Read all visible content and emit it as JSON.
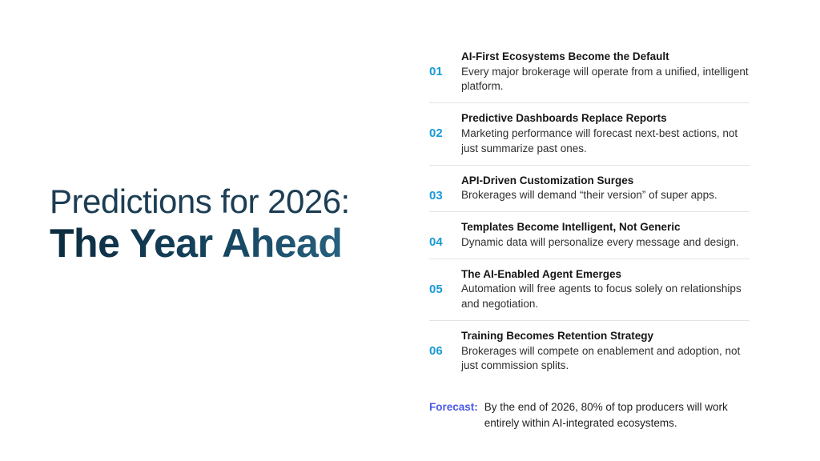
{
  "slide": {
    "title_line1": "Predictions for 2026:",
    "title_line2": "The Year Ahead",
    "predictions": [
      {
        "number": "01",
        "heading": "AI-First Ecosystems Become the Default",
        "body": "Every major brokerage will operate from a unified, intelligent platform."
      },
      {
        "number": "02",
        "heading": "Predictive Dashboards Replace Reports",
        "body": "Marketing performance will forecast next-best actions, not just summarize past ones."
      },
      {
        "number": "03",
        "heading": "API-Driven Customization Surges",
        "body": "Brokerages will demand “their version” of super apps."
      },
      {
        "number": "04",
        "heading": "Templates Become Intelligent, Not Generic",
        "body": "Dynamic data will personalize every message and design."
      },
      {
        "number": "05",
        "heading": "The AI-Enabled Agent Emerges",
        "body": "Automation will free agents to focus solely on relationships and negotiation."
      },
      {
        "number": "06",
        "heading": "Training Becomes Retention Strategy",
        "body": "Brokerages will compete on enablement and adoption, not just commission splits."
      }
    ],
    "forecast": {
      "label": "Forecast:",
      "text": "By the end of 2026, 80% of top producers will work entirely within AI-integrated ecosystems."
    },
    "colors": {
      "number_accent": "#1a9ad5",
      "forecast_accent": "#4a5ae4",
      "title_color": "#0f3147",
      "divider": "#e3e3e3"
    }
  }
}
